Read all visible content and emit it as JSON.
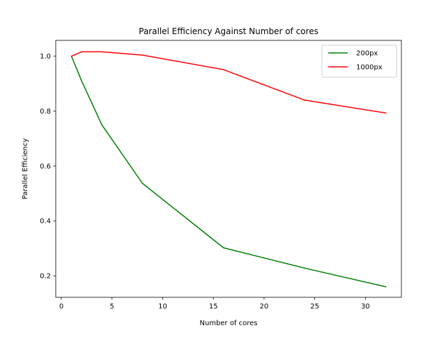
{
  "chart_data": {
    "type": "line",
    "title": "Parallel Efficiency Against Number of cores",
    "xlabel": "Number of cores",
    "ylabel": "Parallel Efficiency",
    "xlim": [
      -0.55,
      33.55
    ],
    "ylim": [
      0.1216,
      1.0576
    ],
    "xticks": [
      0,
      5,
      10,
      15,
      20,
      25,
      30
    ],
    "xtick_labels": [
      "0",
      "5",
      "10",
      "15",
      "20",
      "25",
      "30"
    ],
    "yticks": [
      0.2,
      0.4,
      0.6,
      0.8,
      1.0
    ],
    "ytick_labels": [
      "0.2",
      "0.4",
      "0.6",
      "0.8",
      "1.0"
    ],
    "grid": false,
    "legend_position": "top-right",
    "series": [
      {
        "name": "200px",
        "color": "#008000",
        "x": [
          1,
          2,
          4,
          8,
          16,
          24,
          32
        ],
        "y": [
          1.0,
          0.91,
          0.75,
          0.537,
          0.302,
          0.228,
          0.16
        ]
      },
      {
        "name": "1000px",
        "color": "#ff0000",
        "x": [
          1,
          2,
          4,
          8,
          16,
          24,
          32
        ],
        "y": [
          1.0,
          1.016,
          1.016,
          1.004,
          0.951,
          0.84,
          0.793
        ]
      }
    ]
  }
}
